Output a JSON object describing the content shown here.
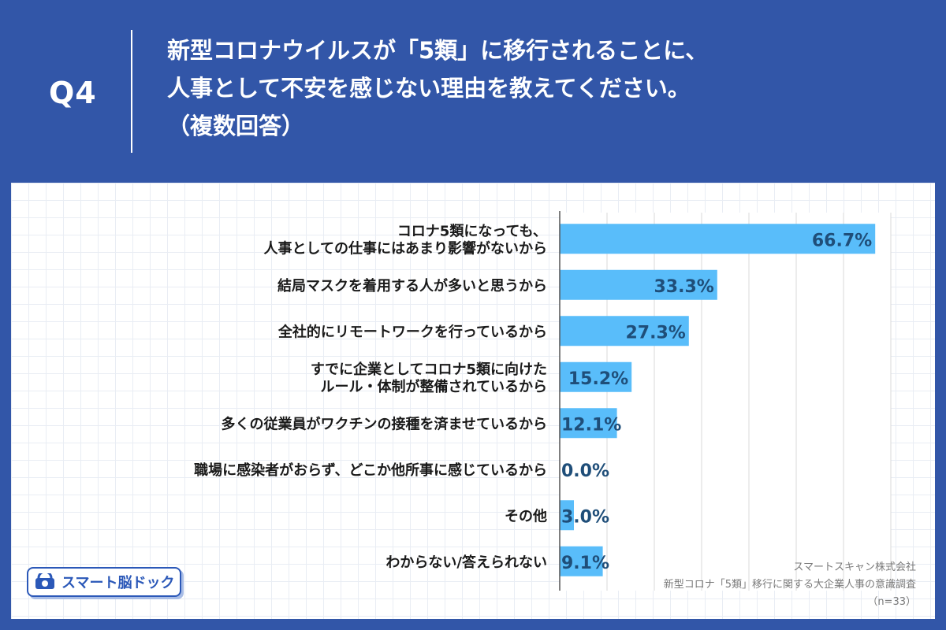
{
  "header": {
    "q_label": "Q4",
    "title_lines": [
      "新型コロナウイルスが「5類」に移行されることに、",
      "人事として不安を感じない理由を教えてください。",
      "（複数回答）"
    ]
  },
  "footer": {
    "company": "スマートスキャン株式会社",
    "survey": "新型コロナ「5類」移行に関する大企業人事の意識調査",
    "n": "（n=33）"
  },
  "logo": {
    "text": "スマート脳ドック",
    "icon": "brain-scan-icon"
  },
  "colors": {
    "bar": "#59bdfa",
    "value_text": "#1f4e79",
    "grid": "#d9d9d9",
    "axis": "#555555"
  },
  "chart_data": {
    "type": "bar",
    "orientation": "horizontal",
    "categories": [
      [
        "コロナ5類になっても、",
        "人事としての仕事にはあまり影響がないから"
      ],
      [
        "結局マスクを着用する人が多いと思うから"
      ],
      [
        "全社的にリモートワークを行っているから"
      ],
      [
        "すでに企業としてコロナ5類に向けた",
        "ルール・体制が整備されているから"
      ],
      [
        "多くの従業員がワクチンの接種を済ませているから"
      ],
      [
        "職場に感染者がおらず、どこか他所事に感じているから"
      ],
      [
        "その他"
      ],
      [
        "わからない/答えられない"
      ]
    ],
    "values": [
      66.7,
      33.3,
      27.3,
      15.2,
      12.1,
      0.0,
      3.0,
      9.1
    ],
    "value_labels": [
      "66.7%",
      "33.3%",
      "27.3%",
      "15.2%",
      "12.1%",
      "0.0%",
      "3.0%",
      "9.1%"
    ],
    "xlim": [
      0,
      70
    ],
    "grid": true
  }
}
